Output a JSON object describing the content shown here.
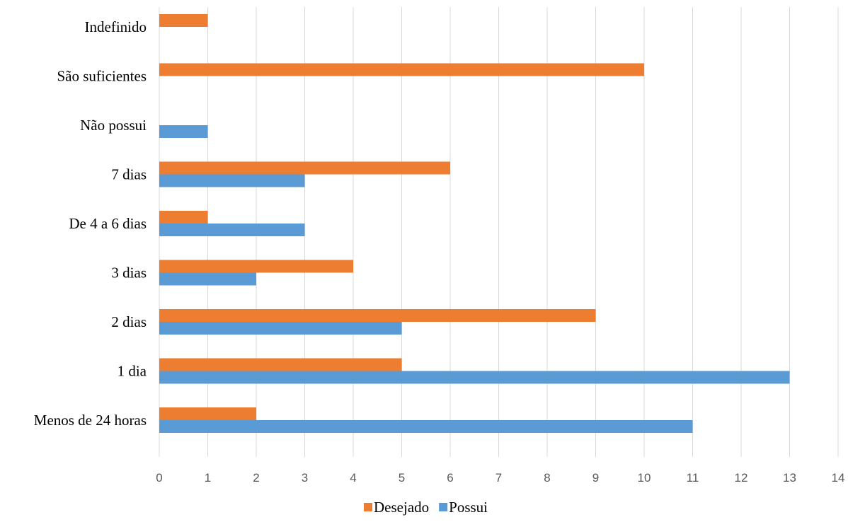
{
  "chart_data": {
    "type": "bar",
    "orientation": "horizontal",
    "categories": [
      "Menos de 24 horas",
      "1 dia",
      "2 dias",
      "3 dias",
      "De 4 a 6 dias",
      "7 dias",
      "Não possui",
      "São suficientes",
      "Indefinido"
    ],
    "series": [
      {
        "name": "Desejado",
        "color": "#ED7D31",
        "values": [
          2,
          5,
          9,
          4,
          1,
          6,
          0,
          10,
          1
        ]
      },
      {
        "name": "Possui",
        "color": "#5B9BD5",
        "values": [
          11,
          13,
          5,
          2,
          3,
          3,
          1,
          0,
          0
        ]
      }
    ],
    "xlim": [
      0,
      14
    ],
    "xticks": [
      "0",
      "1",
      "2",
      "3",
      "4",
      "5",
      "6",
      "7",
      "8",
      "9",
      "10",
      "11",
      "12",
      "13",
      "14"
    ],
    "title": "",
    "xlabel": "",
    "ylabel": "",
    "grid": "vertical",
    "legend": "bottom-center"
  }
}
